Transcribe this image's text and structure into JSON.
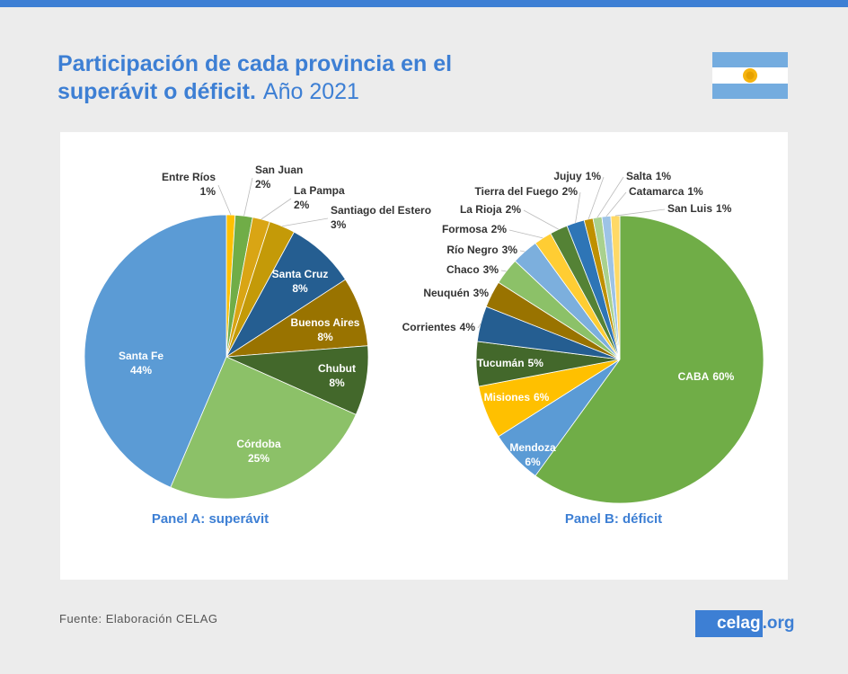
{
  "header": {
    "title": "Participación de cada provincia en el superávit o déficit.",
    "subtitle": "Año 2021"
  },
  "chart_data": [
    {
      "type": "pie",
      "title": "Panel A: superávit",
      "categories": [
        "Entre Ríos",
        "San Juan",
        "La Pampa",
        "Santiago del Estero",
        "Santa Cruz",
        "Buenos Aires",
        "Chubut",
        "Córdoba",
        "Santa Fe"
      ],
      "values": [
        1,
        2,
        2,
        3,
        8,
        8,
        8,
        25,
        44
      ],
      "value_labels": [
        "1%",
        "2%",
        "2%",
        "3%",
        "8%",
        "8%",
        "8%",
        "25%",
        "44%"
      ],
      "colors": [
        "#ffc000",
        "#70ad47",
        "#d9a514",
        "#c49a08",
        "#255e91",
        "#997300",
        "#43682b",
        "#8cc168",
        "#5b9bd5"
      ]
    },
    {
      "type": "pie",
      "title": "Panel B: déficit",
      "categories": [
        "CABA",
        "Mendoza",
        "Misiones",
        "Tucumán",
        "Corrientes",
        "Neuquén",
        "Chaco",
        "Río Negro",
        "Formosa",
        "La Rioja",
        "Tierra del Fuego",
        "Jujuy",
        "Salta",
        "Catamarca",
        "San Luis"
      ],
      "values": [
        60,
        6,
        6,
        5,
        4,
        3,
        3,
        3,
        2,
        2,
        2,
        1,
        1,
        1,
        1
      ],
      "value_labels": [
        "60%",
        "6%",
        "6%",
        "5%",
        "4%",
        "3%",
        "3%",
        "3%",
        "2%",
        "2%",
        "2%",
        "1%",
        "1%",
        "1%",
        "1%"
      ],
      "colors": [
        "#70ad47",
        "#5b9bd5",
        "#ffc000",
        "#43682b",
        "#255e91",
        "#997300",
        "#8cc168",
        "#7cafdd",
        "#ffcd33",
        "#548235",
        "#2e75b6",
        "#bf9000",
        "#a9d18e",
        "#9dc3e6",
        "#ffd966"
      ]
    }
  ],
  "footer": {
    "source": "Fuente: Elaboración CELAG",
    "logo_main": "celag",
    "logo_suffix": ".org"
  }
}
